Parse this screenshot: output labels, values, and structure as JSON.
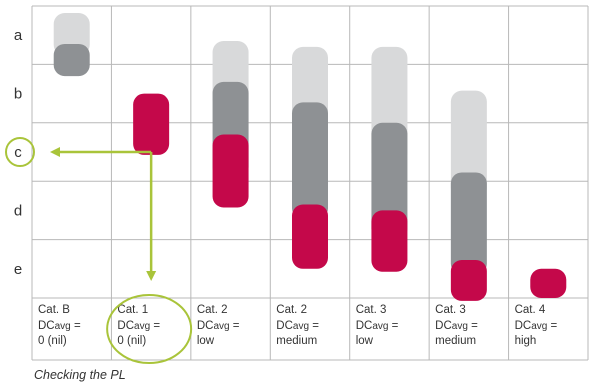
{
  "chart_data": {
    "type": "range-bar",
    "title": "",
    "levels": [
      "a",
      "b",
      "c",
      "d",
      "e"
    ],
    "categories": [
      {
        "cat": "Cat. B",
        "dc_prefix": "DC",
        "dc_sub": "avg",
        "dc_suffix": " =",
        "dc_value": "0 (nil)"
      },
      {
        "cat": "Cat. 1",
        "dc_prefix": "DC",
        "dc_sub": "avg",
        "dc_suffix": " =",
        "dc_value": "0 (nil)"
      },
      {
        "cat": "Cat. 2",
        "dc_prefix": "DC",
        "dc_sub": "avg",
        "dc_suffix": " =",
        "dc_value": "low"
      },
      {
        "cat": "Cat. 2",
        "dc_prefix": "DC",
        "dc_sub": "avg",
        "dc_suffix": " =",
        "dc_value": "medium"
      },
      {
        "cat": "Cat. 3",
        "dc_prefix": "DC",
        "dc_sub": "avg",
        "dc_suffix": " =",
        "dc_value": "low"
      },
      {
        "cat": "Cat. 3",
        "dc_prefix": "DC",
        "dc_sub": "avg",
        "dc_suffix": " =",
        "dc_value": "medium"
      },
      {
        "cat": "Cat. 4",
        "dc_prefix": "DC",
        "dc_sub": "avg",
        "dc_suffix": " =",
        "dc_value": "high"
      }
    ],
    "series": [
      {
        "role": "light",
        "color": "#d8d9da",
        "ranges": [
          [
            0.12,
            0.85
          ],
          null,
          [
            0.6,
            1.78
          ],
          [
            0.7,
            2.35
          ],
          [
            0.7,
            2.7
          ],
          [
            1.45,
            3.3
          ],
          null
        ]
      },
      {
        "role": "dark",
        "color": "#8e9194",
        "ranges": [
          [
            0.65,
            1.2
          ],
          null,
          [
            1.3,
            2.95
          ],
          [
            1.65,
            3.65
          ],
          [
            2.0,
            4.0
          ],
          [
            2.85,
            4.6
          ],
          null
        ]
      },
      {
        "role": "red",
        "color": "#c4084a",
        "ranges": [
          [
            0,
            0
          ],
          [
            1.5,
            2.55
          ],
          [
            2.2,
            3.45
          ],
          [
            3.4,
            4.5
          ],
          [
            3.5,
            4.55
          ],
          [
            4.35,
            5.05
          ],
          [
            4.5,
            5.0
          ]
        ]
      }
    ],
    "annotation": {
      "color": "#a9c43a",
      "from_category": 1,
      "to_level": "c"
    },
    "caption": "Checking the PL"
  }
}
